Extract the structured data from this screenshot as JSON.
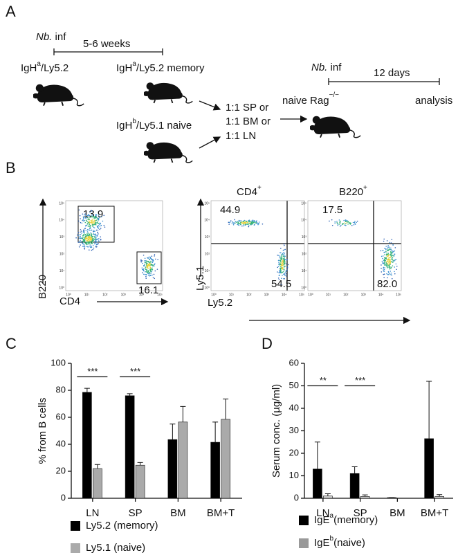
{
  "panel_labels": [
    "A",
    "B",
    "C",
    "D"
  ],
  "schematic": {
    "infection_1": {
      "organism": "Nb.",
      "action": "inf"
    },
    "duration_1": "5-6 weeks",
    "donor_memory_start": {
      "base": "IgH",
      "sup": "a",
      "rest": "/Ly5.2"
    },
    "donor_memory": {
      "base": "IgH",
      "sup": "a",
      "rest": "/Ly5.2 memory"
    },
    "donor_naive": {
      "base": "IgH",
      "sup": "b",
      "rest": "/Ly5.1 naive"
    },
    "mixes": [
      "1:1 SP or",
      "1:1 BM or",
      "1:1 LN"
    ],
    "infection_2": {
      "organism": "Nb.",
      "action": "inf"
    },
    "duration_2": "12 days",
    "recipient": {
      "base": "naive Rag",
      "sup": "−/−"
    },
    "readout": "analysis"
  },
  "flow": {
    "axis_ticks": [
      "10⁰",
      "10¹",
      "10²",
      "10³",
      "10⁴",
      "10⁵"
    ],
    "plot1": {
      "y_label": "B220",
      "x_label": "CD4",
      "gates": [
        "13.9",
        "16.1"
      ]
    },
    "plot2": {
      "title": {
        "base": "CD4",
        "sup": "+"
      },
      "quadrants": [
        "44.9",
        "54.5"
      ]
    },
    "plot3": {
      "title": {
        "base": "B220",
        "sup": "+"
      },
      "quadrants": [
        "17.5",
        "82.0"
      ]
    },
    "y_label": "Ly5.1",
    "x_label": "Ly5.2"
  },
  "chart_data": [
    {
      "type": "bar",
      "y_label": "% from B cells",
      "categories": [
        "LN",
        "SP",
        "BM",
        "BM+T"
      ],
      "ylim": [
        0,
        100
      ],
      "yticks": [
        0,
        20,
        40,
        60,
        80,
        100
      ],
      "series": [
        {
          "name": "Ly5.2 (memory)",
          "color": "#000000",
          "values": [
            78.5,
            76,
            43.5,
            41.5
          ],
          "errors": [
            3,
            1.5,
            11.5,
            15
          ]
        },
        {
          "name": "Ly5.1 (naive)",
          "color": "#aaaaaa",
          "values": [
            22,
            24.5,
            56.5,
            58.5
          ],
          "errors": [
            3,
            2,
            11.5,
            15
          ]
        }
      ],
      "annotations": [
        {
          "text": "***",
          "category": 0,
          "y": 90
        },
        {
          "text": "***",
          "category": 1,
          "y": 90
        }
      ]
    },
    {
      "type": "bar",
      "y_label": "Serum conc. (µg/ml)",
      "categories": [
        "LN",
        "SP",
        "BM",
        "BM+T"
      ],
      "ylim": [
        0,
        60
      ],
      "yticks": [
        0,
        10,
        20,
        30,
        40,
        50,
        60
      ],
      "series": [
        {
          "name": "IgE",
          "superscript": "a",
          "suffix": "(memory)",
          "color": "#000000",
          "values": [
            13,
            11,
            0.3,
            26.5
          ],
          "errors": [
            12,
            3,
            0,
            25.5
          ]
        },
        {
          "name": "IgE",
          "superscript": "b",
          "suffix": "(naive)",
          "color": "#d0d0d0",
          "values": [
            1,
            0.8,
            0,
            0.8
          ],
          "errors": [
            1,
            0.7,
            0,
            0.8
          ]
        }
      ],
      "annotations": [
        {
          "text": "**",
          "category": 0,
          "y": 50
        },
        {
          "text": "***",
          "category": 1,
          "y": 50
        }
      ]
    }
  ]
}
